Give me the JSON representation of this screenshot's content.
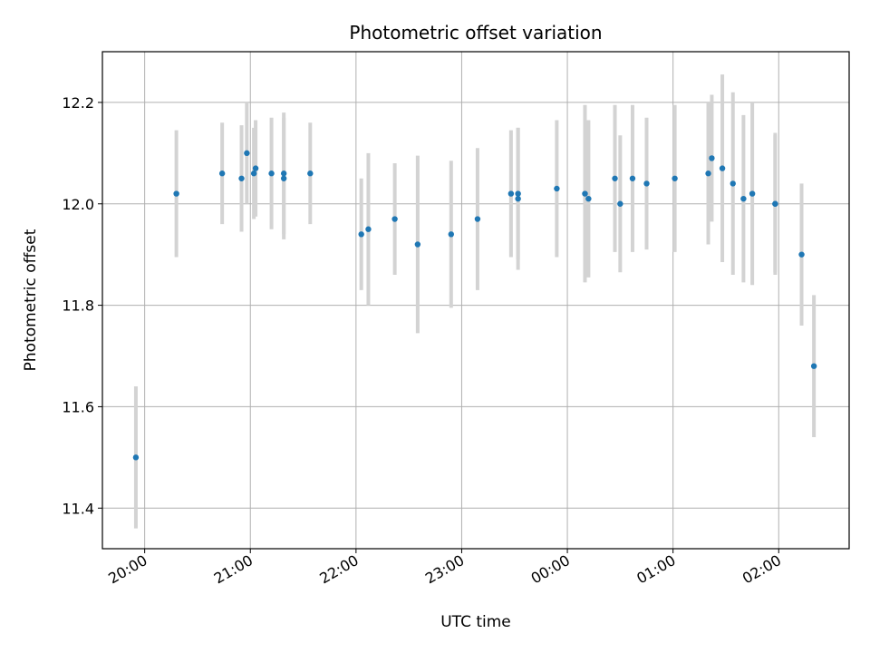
{
  "chart_data": {
    "type": "scatter",
    "title": "Photometric offset variation",
    "xlabel": "UTC time",
    "ylabel": "Photometric offset",
    "x_ticks": [
      "20:00",
      "21:00",
      "22:00",
      "23:00",
      "00:00",
      "01:00",
      "02:00"
    ],
    "y_ticks": [
      "11.4",
      "11.6",
      "11.8",
      "12.0",
      "12.2"
    ],
    "x_domain": [
      "19:36",
      "02:40"
    ],
    "ylim": [
      11.32,
      12.3
    ],
    "grid": true,
    "point_color": "#1f77b4",
    "errorbar_color": "#d3d3d3",
    "points": [
      {
        "time": "19:55",
        "offset": 11.5,
        "err": 0.14
      },
      {
        "time": "20:18",
        "offset": 12.02,
        "err": 0.125
      },
      {
        "time": "20:44",
        "offset": 12.06,
        "err": 0.1
      },
      {
        "time": "20:55",
        "offset": 12.05,
        "err": 0.105
      },
      {
        "time": "20:58",
        "offset": 12.1,
        "err": 0.1
      },
      {
        "time": "21:02",
        "offset": 12.06,
        "err": 0.09
      },
      {
        "time": "21:03",
        "offset": 12.07,
        "err": 0.095
      },
      {
        "time": "21:12",
        "offset": 12.06,
        "err": 0.11
      },
      {
        "time": "21:19",
        "offset": 12.06,
        "err": 0.12
      },
      {
        "time": "21:19",
        "offset": 12.05,
        "err": 0.12
      },
      {
        "time": "21:34",
        "offset": 12.06,
        "err": 0.1
      },
      {
        "time": "22:03",
        "offset": 11.94,
        "err": 0.11
      },
      {
        "time": "22:07",
        "offset": 11.95,
        "err": 0.15
      },
      {
        "time": "22:22",
        "offset": 11.97,
        "err": 0.11
      },
      {
        "time": "22:35",
        "offset": 11.92,
        "err": 0.175
      },
      {
        "time": "22:54",
        "offset": 11.94,
        "err": 0.145
      },
      {
        "time": "23:09",
        "offset": 11.97,
        "err": 0.14
      },
      {
        "time": "23:28",
        "offset": 12.02,
        "err": 0.125
      },
      {
        "time": "23:32",
        "offset": 12.02,
        "err": 0.13
      },
      {
        "time": "23:32",
        "offset": 12.01,
        "err": 0.14
      },
      {
        "time": "23:54",
        "offset": 12.03,
        "err": 0.135
      },
      {
        "time": "00:10",
        "offset": 12.02,
        "err": 0.175
      },
      {
        "time": "00:12",
        "offset": 12.01,
        "err": 0.155
      },
      {
        "time": "00:27",
        "offset": 12.05,
        "err": 0.145
      },
      {
        "time": "00:30",
        "offset": 12.0,
        "err": 0.135
      },
      {
        "time": "00:37",
        "offset": 12.05,
        "err": 0.145
      },
      {
        "time": "00:45",
        "offset": 12.04,
        "err": 0.13
      },
      {
        "time": "01:01",
        "offset": 12.05,
        "err": 0.145
      },
      {
        "time": "01:20",
        "offset": 12.06,
        "err": 0.14
      },
      {
        "time": "01:22",
        "offset": 12.09,
        "err": 0.125
      },
      {
        "time": "01:28",
        "offset": 12.07,
        "err": 0.185
      },
      {
        "time": "01:34",
        "offset": 12.04,
        "err": 0.18
      },
      {
        "time": "01:40",
        "offset": 12.01,
        "err": 0.165
      },
      {
        "time": "01:45",
        "offset": 12.02,
        "err": 0.18
      },
      {
        "time": "01:58",
        "offset": 12.0,
        "err": 0.135
      },
      {
        "time": "01:58",
        "offset": 12.0,
        "err": 0.14
      },
      {
        "time": "02:13",
        "offset": 11.9,
        "err": 0.14
      },
      {
        "time": "02:20",
        "offset": 11.68,
        "err": 0.14
      }
    ]
  }
}
